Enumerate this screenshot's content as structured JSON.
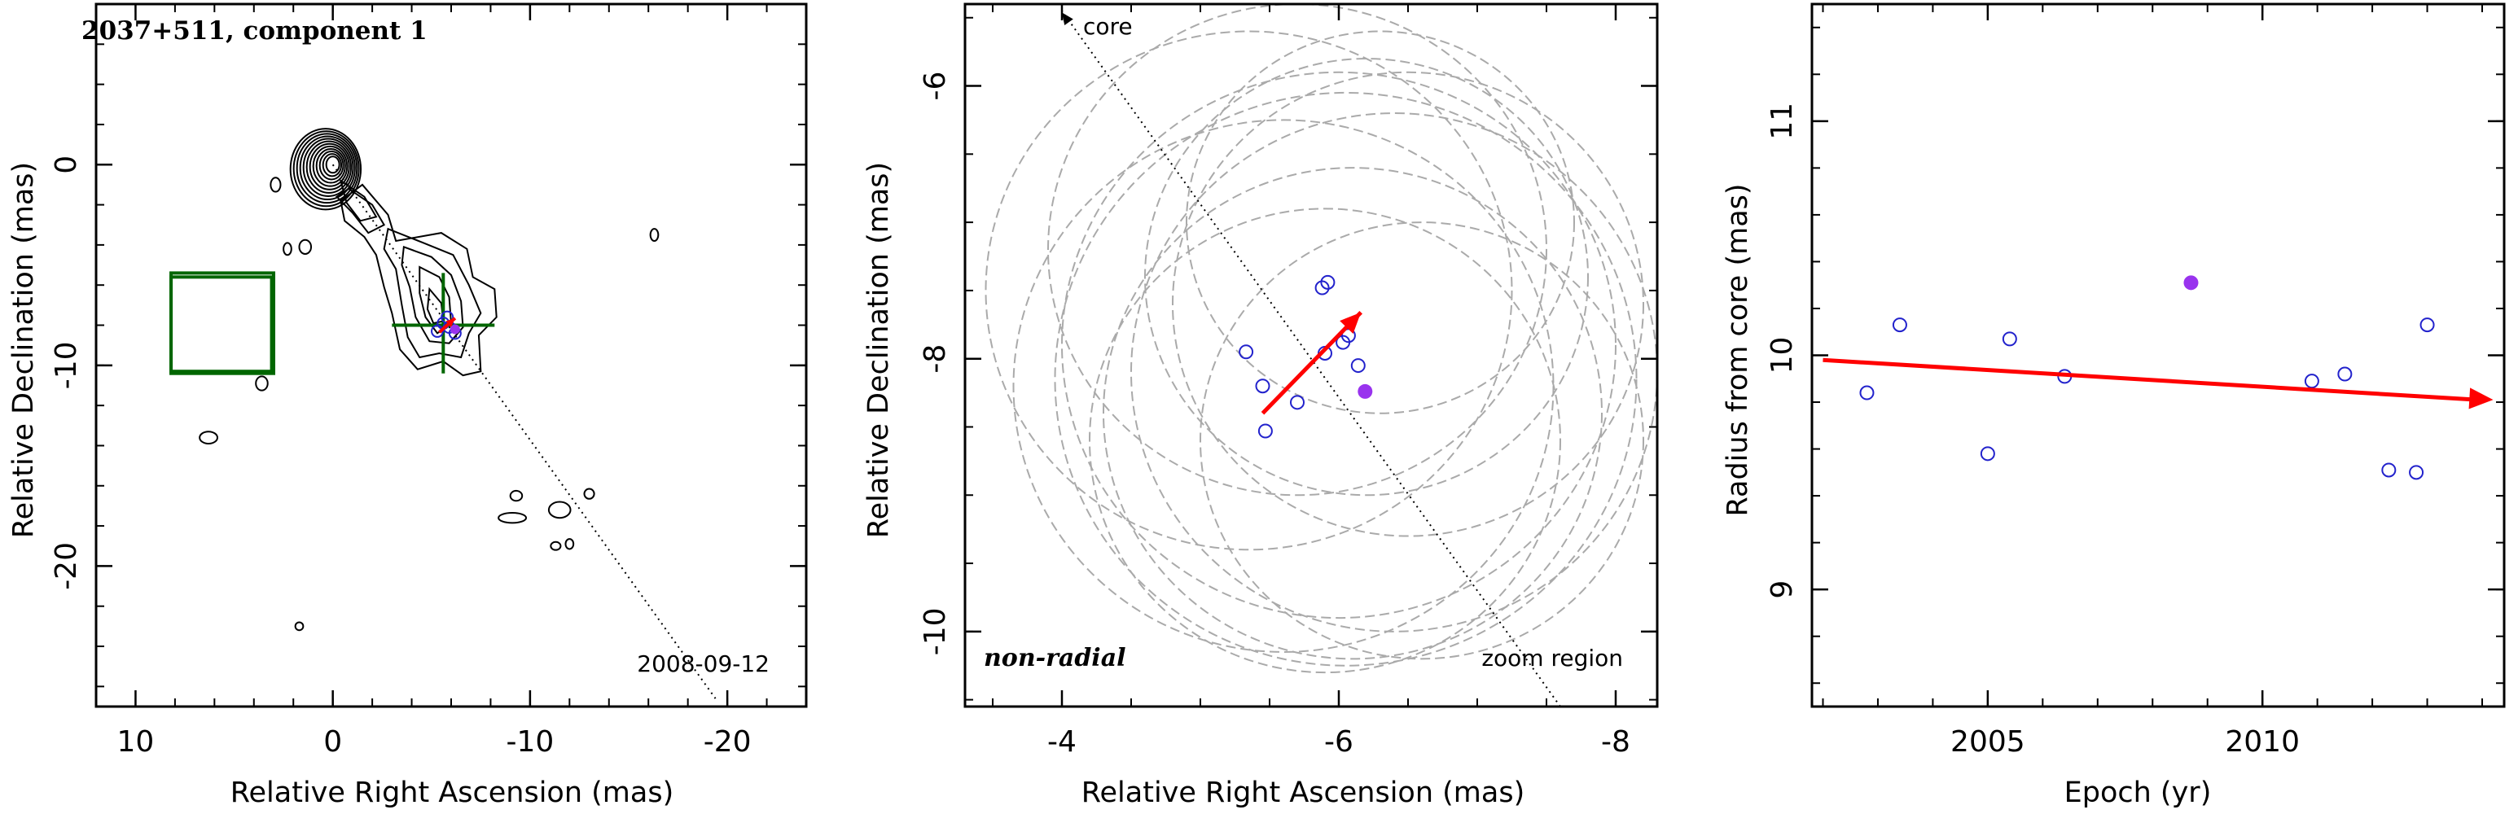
{
  "chart_data": [
    {
      "type": "contour",
      "title": "2037+511, component 1",
      "xlabel": "Relative Right Ascension (mas)",
      "ylabel": "Relative Declination (mas)",
      "xlim": [
        12,
        -24
      ],
      "ylim": [
        -27,
        8
      ],
      "xticks": [
        10,
        0,
        -10,
        -20
      ],
      "yticks": [
        0,
        -10,
        -20
      ],
      "date_label": "2008-09-12",
      "core_line": {
        "from": [
          0,
          0
        ],
        "to": [
          -19.4,
          -26.6
        ]
      },
      "zoom_boxes": [
        {
          "ra_range": [
            3,
            8.2
          ],
          "dec_range": [
            -10.4,
            -5.4
          ]
        },
        {
          "ra_range": [
            3.1,
            8.2
          ],
          "dec_range": [
            -10.3,
            -5.6
          ]
        }
      ],
      "epoch_points": [
        {
          "ra": -5.8,
          "dec": -7.6
        },
        {
          "ra": -5.3,
          "dec": -8.3
        },
        {
          "ra": -5.9,
          "dec": -8.1
        },
        {
          "ra": -6.2,
          "dec": -8.4
        },
        {
          "ra": -5.6,
          "dec": -7.9
        }
      ],
      "highlight_point": {
        "ra": -6.2,
        "dec": -8.2,
        "color": "#9933ee"
      },
      "motion_vector": {
        "from": [
          -5.4,
          -8.35
        ],
        "to": [
          -6.2,
          -7.65
        ],
        "color": "#ff0000"
      },
      "contour_color": "#000000"
    },
    {
      "type": "scatter",
      "xlabel": "Relative Right Ascension (mas)",
      "ylabel": "Relative Declination (mas)",
      "xlim": [
        -3.3,
        -8.3
      ],
      "ylim": [
        -10.55,
        -5.4
      ],
      "xticks": [
        -4,
        -6,
        -8
      ],
      "yticks": [
        -6,
        -8,
        -10
      ],
      "label_left": "non-radial",
      "label_right": "zoom region",
      "core_label": "core",
      "core_line": {
        "from": [
          -4,
          -5.45
        ],
        "to": [
          -7.6,
          -10.55
        ]
      },
      "points": [
        {
          "ra": -5.33,
          "dec": -7.95
        },
        {
          "ra": -5.45,
          "dec": -8.2
        },
        {
          "ra": -5.47,
          "dec": -8.53
        },
        {
          "ra": -5.7,
          "dec": -8.32
        },
        {
          "ra": -5.88,
          "dec": -7.48
        },
        {
          "ra": -5.92,
          "dec": -7.44
        },
        {
          "ra": -5.9,
          "dec": -7.96
        },
        {
          "ra": -6.03,
          "dec": -7.88
        },
        {
          "ra": -6.07,
          "dec": -7.83
        },
        {
          "ra": -6.14,
          "dec": -8.05
        }
      ],
      "highlight_point": {
        "ra": -6.19,
        "dec": -8.24,
        "color": "#9933ee"
      },
      "motion_vector": {
        "from": [
          -5.45,
          -8.4
        ],
        "to": [
          -6.16,
          -7.66
        ],
        "color": "#ff0000"
      },
      "uncertainty_circles": [
        {
          "ra": -5.35,
          "dec": -7.5,
          "r": 1.9
        },
        {
          "ra": -5.7,
          "dec": -7.2,
          "r": 1.8
        },
        {
          "ra": -6.0,
          "dec": -7.9,
          "r": 2.0
        },
        {
          "ra": -6.1,
          "dec": -8.4,
          "r": 1.8
        },
        {
          "ra": -6.5,
          "dec": -7.6,
          "r": 1.7
        },
        {
          "ra": -6.4,
          "dec": -8.1,
          "r": 1.9
        },
        {
          "ra": -5.9,
          "dec": -8.6,
          "r": 1.7
        },
        {
          "ra": -6.2,
          "dec": -7.4,
          "r": 1.6
        },
        {
          "ra": -5.6,
          "dec": -8.2,
          "r": 1.95
        },
        {
          "ra": -6.6,
          "dec": -8.6,
          "r": 1.6
        },
        {
          "ra": -6.3,
          "dec": -7.0,
          "r": 1.4
        },
        {
          "ra": -6.05,
          "dec": -8.15,
          "r": 2.1
        }
      ],
      "circle_color": "#aaaaaa"
    },
    {
      "type": "scatter",
      "xlabel": "Epoch (yr)",
      "ylabel": "Radius from core (mas)",
      "xlim": [
        2001.8,
        2014.4
      ],
      "ylim": [
        8.5,
        11.5
      ],
      "xticks": [
        2005,
        2010
      ],
      "yticks": [
        9,
        10,
        11
      ],
      "points": [
        {
          "x": 2002.8,
          "y": 9.84
        },
        {
          "x": 2003.4,
          "y": 10.13
        },
        {
          "x": 2005.0,
          "y": 9.58
        },
        {
          "x": 2005.4,
          "y": 10.07
        },
        {
          "x": 2006.4,
          "y": 9.91
        },
        {
          "x": 2010.9,
          "y": 9.89
        },
        {
          "x": 2011.5,
          "y": 9.92
        },
        {
          "x": 2012.3,
          "y": 9.51
        },
        {
          "x": 2012.8,
          "y": 9.5
        },
        {
          "x": 2013.0,
          "y": 10.13
        }
      ],
      "highlight_point": {
        "x": 2008.7,
        "y": 10.31,
        "color": "#9933ee"
      },
      "trend_arrow": {
        "from": [
          2002.0,
          9.98
        ],
        "to": [
          2014.2,
          9.81
        ],
        "color": "#ff0000"
      },
      "point_color": "#2222cc"
    }
  ]
}
